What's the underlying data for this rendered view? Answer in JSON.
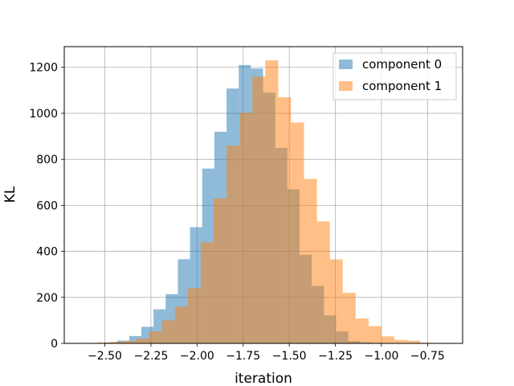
{
  "chart_data": {
    "type": "bar",
    "subtype": "overlapping-histogram",
    "xlabel": "iteration",
    "ylabel": "KL",
    "xlim": [
      -2.72,
      -0.56
    ],
    "ylim": [
      0,
      1290
    ],
    "xticks": [
      -2.5,
      -2.25,
      -2.0,
      -1.75,
      -1.5,
      -1.25,
      -1.0,
      -0.75
    ],
    "xtick_labels": [
      "−2.50",
      "−2.25",
      "−2.00",
      "−1.75",
      "−1.50",
      "−1.25",
      "−1.00",
      "−0.75"
    ],
    "yticks": [
      0,
      200,
      400,
      600,
      800,
      1000,
      1200
    ],
    "ytick_labels": [
      "0",
      "200",
      "400",
      "600",
      "800",
      "1000",
      "1200"
    ],
    "grid": true,
    "legend_position": "top-right",
    "series": [
      {
        "name": "component 0",
        "color": "#1f77b4",
        "alpha": 0.5,
        "bins": [
          [
            -2.632,
            -2.566,
            2
          ],
          [
            -2.566,
            -2.5,
            1
          ],
          [
            -2.5,
            -2.434,
            4
          ],
          [
            -2.434,
            -2.368,
            12
          ],
          [
            -2.368,
            -2.302,
            32
          ],
          [
            -2.302,
            -2.236,
            72
          ],
          [
            -2.236,
            -2.17,
            148
          ],
          [
            -2.17,
            -2.104,
            214
          ],
          [
            -2.104,
            -2.038,
            366
          ],
          [
            -2.038,
            -1.972,
            505
          ],
          [
            -1.972,
            -1.906,
            760
          ],
          [
            -1.906,
            -1.84,
            920
          ],
          [
            -1.84,
            -1.774,
            1108
          ],
          [
            -1.774,
            -1.708,
            1210
          ],
          [
            -1.708,
            -1.642,
            1195
          ],
          [
            -1.642,
            -1.576,
            1090
          ],
          [
            -1.576,
            -1.51,
            850
          ],
          [
            -1.51,
            -1.444,
            670
          ],
          [
            -1.444,
            -1.378,
            385
          ],
          [
            -1.378,
            -1.312,
            250
          ],
          [
            -1.312,
            -1.246,
            122
          ],
          [
            -1.246,
            -1.18,
            52
          ],
          [
            -1.18,
            -1.114,
            10
          ],
          [
            -1.114,
            -1.048,
            4
          ],
          [
            -1.048,
            -0.982,
            1
          ]
        ]
      },
      {
        "name": "component 1",
        "color": "#ff7f0e",
        "alpha": 0.5,
        "bins": [
          [
            -2.54,
            -2.47,
            4
          ],
          [
            -2.47,
            -2.4,
            7
          ],
          [
            -2.4,
            -2.33,
            10
          ],
          [
            -2.33,
            -2.26,
            22
          ],
          [
            -2.26,
            -2.19,
            52
          ],
          [
            -2.19,
            -2.12,
            100
          ],
          [
            -2.12,
            -2.05,
            160
          ],
          [
            -2.05,
            -1.98,
            240
          ],
          [
            -1.98,
            -1.91,
            440
          ],
          [
            -1.91,
            -1.84,
            630
          ],
          [
            -1.84,
            -1.77,
            860
          ],
          [
            -1.77,
            -1.7,
            1003
          ],
          [
            -1.7,
            -1.63,
            1160
          ],
          [
            -1.63,
            -1.56,
            1230
          ],
          [
            -1.56,
            -1.49,
            1070
          ],
          [
            -1.49,
            -1.42,
            960
          ],
          [
            -1.42,
            -1.35,
            715
          ],
          [
            -1.35,
            -1.28,
            530
          ],
          [
            -1.28,
            -1.21,
            365
          ],
          [
            -1.21,
            -1.14,
            220
          ],
          [
            -1.14,
            -1.07,
            108
          ],
          [
            -1.07,
            -1.0,
            75
          ],
          [
            -1.0,
            -0.93,
            30
          ],
          [
            -0.93,
            -0.86,
            15
          ],
          [
            -0.86,
            -0.79,
            12
          ],
          [
            -0.79,
            -0.72,
            3
          ]
        ]
      }
    ]
  }
}
